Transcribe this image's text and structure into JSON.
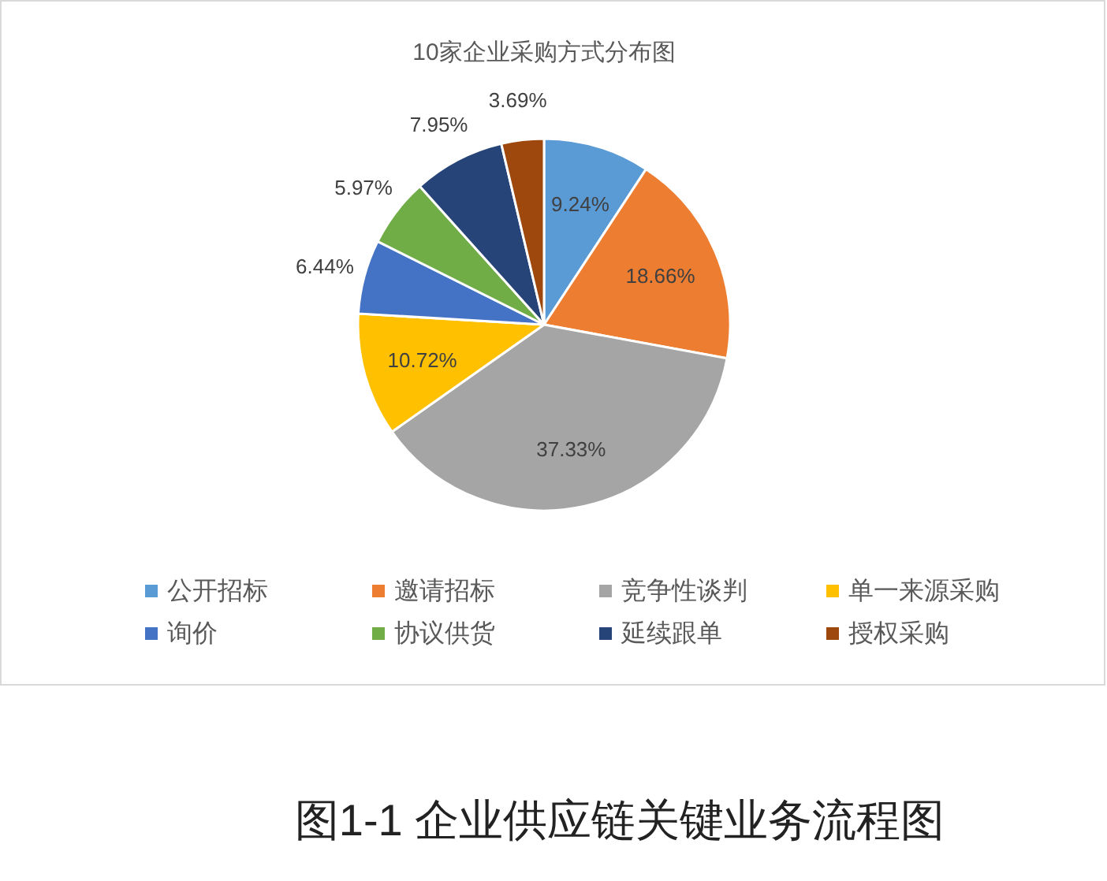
{
  "chart_data": {
    "type": "pie",
    "title": "10家企业采购方式分布图",
    "categories": [
      "公开招标",
      "邀请招标",
      "竞争性谈判",
      "单一来源采购",
      "询价",
      "协议供货",
      "延续跟单",
      "授权采购"
    ],
    "values": [
      9.24,
      18.66,
      37.33,
      10.72,
      6.44,
      5.97,
      7.95,
      3.69
    ],
    "colors": [
      "#5b9bd5",
      "#ed7d31",
      "#a5a5a5",
      "#ffc000",
      "#4472c4",
      "#70ad47",
      "#264478",
      "#9e480e"
    ],
    "value_labels": [
      "9.24%",
      "18.66%",
      "37.33%",
      "10.72%",
      "6.44%",
      "5.97%",
      "7.95%",
      "3.69%"
    ],
    "legend": "bottom",
    "annotations": [
      "图1-1  企业供应链关键业务流程图"
    ]
  }
}
